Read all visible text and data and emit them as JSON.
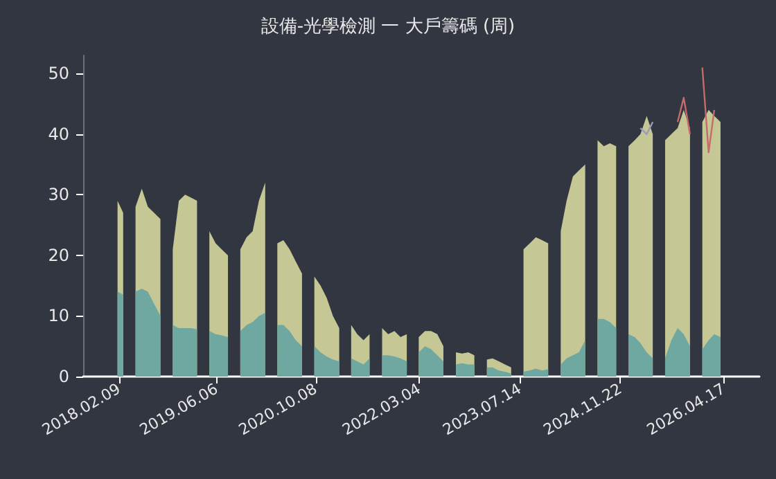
{
  "chart_data": {
    "type": "area",
    "title": "設備-光學檢測 一 大戶籌碼 (周)",
    "stacked": true,
    "x": [
      "2018-02",
      "2018-03",
      "2018-04",
      "2018-05",
      "2018-06",
      "2018-07",
      "2018-08",
      "2018-09",
      "2018-10",
      "2018-11",
      "2018-12",
      "2019-01",
      "2019-02",
      "2019-03",
      "2019-04",
      "2019-05",
      "2019-06",
      "2019-07",
      "2019-08",
      "2019-09",
      "2019-10",
      "2019-11",
      "2019-12",
      "2020-01",
      "2020-02",
      "2020-03",
      "2020-04",
      "2020-05",
      "2020-06",
      "2020-07",
      "2020-08",
      "2020-09",
      "2020-10",
      "2020-11",
      "2020-12",
      "2021-01",
      "2021-02",
      "2021-03",
      "2021-04",
      "2021-05",
      "2021-06",
      "2021-07",
      "2021-08",
      "2021-09",
      "2021-10",
      "2021-11",
      "2021-12",
      "2022-01",
      "2022-02",
      "2022-03",
      "2022-04",
      "2022-05",
      "2022-06",
      "2022-07",
      "2022-08",
      "2022-09",
      "2022-10",
      "2022-11",
      "2022-12",
      "2023-01",
      "2023-02",
      "2023-03",
      "2023-04",
      "2023-05",
      "2023-06",
      "2023-07",
      "2023-08",
      "2023-09",
      "2023-10",
      "2023-11",
      "2023-12",
      "2024-01",
      "2024-02",
      "2024-03",
      "2024-04",
      "2024-05",
      "2024-06",
      "2024-07",
      "2024-08",
      "2024-09",
      "2024-10",
      "2024-11",
      "2024-12",
      "2025-01",
      "2025-02",
      "2025-03",
      "2025-04",
      "2025-05",
      "2025-06",
      "2025-07",
      "2025-08",
      "2025-09",
      "2025-10",
      "2025-11",
      "2025-12",
      "2026-01",
      "2026-02",
      "2026-03",
      "2026-04"
    ],
    "series": [
      {
        "color": "#6fa8a0",
        "values": [
          14,
          13.5,
          null,
          14,
          14.5,
          14,
          12,
          10,
          null,
          8.5,
          8,
          8,
          8,
          7.8,
          null,
          7.5,
          7,
          6.8,
          6.5,
          null,
          7.5,
          8.5,
          9,
          10,
          10.5,
          null,
          8.5,
          8.5,
          7.5,
          6,
          5,
          null,
          5,
          4,
          3.3,
          2.8,
          2.5,
          null,
          3,
          2.5,
          2,
          3,
          null,
          3.5,
          3.5,
          3.3,
          3,
          2.5,
          null,
          4,
          5,
          4.5,
          3.5,
          2.5,
          null,
          2,
          2.2,
          2,
          2,
          null,
          1.5,
          1.5,
          1,
          0.8,
          0.5,
          null,
          0.8,
          1,
          1.3,
          1,
          1.2,
          null,
          2,
          3,
          3.5,
          4,
          6,
          null,
          9.5,
          9.5,
          9,
          8,
          null,
          7,
          6.5,
          5.5,
          4,
          3,
          null,
          3,
          6,
          8,
          7,
          5,
          null,
          4.5,
          6,
          7,
          6.5
        ]
      },
      {
        "color": "#c5c795",
        "values": [
          15,
          13.5,
          null,
          14,
          16.5,
          14,
          15,
          16,
          null,
          12.5,
          21,
          22,
          21.5,
          21.2,
          null,
          16.5,
          15,
          14.2,
          13.5,
          null,
          13.5,
          14.5,
          15,
          19,
          21.5,
          null,
          13.5,
          14,
          13.5,
          13,
          12,
          null,
          11.5,
          11,
          9.7,
          7.2,
          5.5,
          null,
          5.5,
          4.5,
          4,
          4,
          null,
          4.5,
          3.5,
          4.2,
          3.5,
          4.5,
          null,
          2.5,
          2.5,
          3,
          3.5,
          2.5,
          null,
          2,
          1.6,
          2,
          1.5,
          null,
          1.3,
          1.5,
          1.5,
          1.2,
          1,
          null,
          20.2,
          21,
          21.7,
          21.5,
          20.8,
          null,
          22,
          26,
          29.5,
          30,
          29,
          null,
          29.5,
          28.5,
          29.5,
          30,
          null,
          31,
          32.5,
          34.5,
          39,
          37,
          null,
          36,
          34,
          33,
          37,
          36,
          null,
          37.5,
          38,
          36,
          35.5
        ]
      },
      {
        "type": "line",
        "color": "#9a9cbc",
        "values": [
          null,
          null,
          null,
          null,
          null,
          null,
          null,
          null,
          null,
          null,
          null,
          null,
          null,
          null,
          null,
          null,
          null,
          null,
          null,
          null,
          null,
          null,
          null,
          null,
          null,
          null,
          null,
          null,
          null,
          null,
          null,
          null,
          null,
          null,
          null,
          null,
          null,
          null,
          null,
          null,
          null,
          null,
          null,
          null,
          null,
          null,
          null,
          null,
          null,
          null,
          null,
          null,
          null,
          null,
          null,
          null,
          null,
          null,
          null,
          null,
          null,
          null,
          null,
          null,
          null,
          null,
          null,
          null,
          null,
          null,
          null,
          null,
          null,
          null,
          null,
          null,
          null,
          null,
          null,
          null,
          null,
          null,
          null,
          null,
          null,
          41,
          40,
          42,
          null,
          null,
          null,
          null,
          null,
          null,
          null,
          null,
          null,
          null,
          null
        ]
      },
      {
        "type": "line",
        "color": "#c86a6a",
        "values": [
          null,
          null,
          null,
          null,
          null,
          null,
          null,
          null,
          null,
          null,
          null,
          null,
          null,
          null,
          null,
          null,
          null,
          null,
          null,
          null,
          null,
          null,
          null,
          null,
          null,
          null,
          null,
          null,
          null,
          null,
          null,
          null,
          null,
          null,
          null,
          null,
          null,
          null,
          null,
          null,
          null,
          null,
          null,
          null,
          null,
          null,
          null,
          null,
          null,
          null,
          null,
          null,
          null,
          null,
          null,
          null,
          null,
          null,
          null,
          null,
          null,
          null,
          null,
          null,
          null,
          null,
          null,
          null,
          null,
          null,
          null,
          null,
          null,
          null,
          null,
          null,
          null,
          null,
          null,
          null,
          null,
          null,
          null,
          null,
          null,
          null,
          null,
          null,
          null,
          null,
          null,
          42,
          46,
          40,
          null,
          51,
          37,
          44,
          null
        ]
      }
    ],
    "xlim": [
      "2017-08-15",
      "2026-10-10"
    ],
    "xticks": [
      {
        "value": "2018-02-09",
        "label": "2018.02.09"
      },
      {
        "value": "2019-06-06",
        "label": "2019.06.06"
      },
      {
        "value": "2020-10-08",
        "label": "2020.10.08"
      },
      {
        "value": "2022-03-04",
        "label": "2022.03.04"
      },
      {
        "value": "2023-07-14",
        "label": "2023.07.14"
      },
      {
        "value": "2024-11-22",
        "label": "2024.11.22"
      },
      {
        "value": "2026-04-17",
        "label": "2026.04.17"
      }
    ],
    "ylim": [
      0,
      53
    ],
    "yticks": [
      0,
      10,
      20,
      30,
      40,
      50
    ]
  }
}
